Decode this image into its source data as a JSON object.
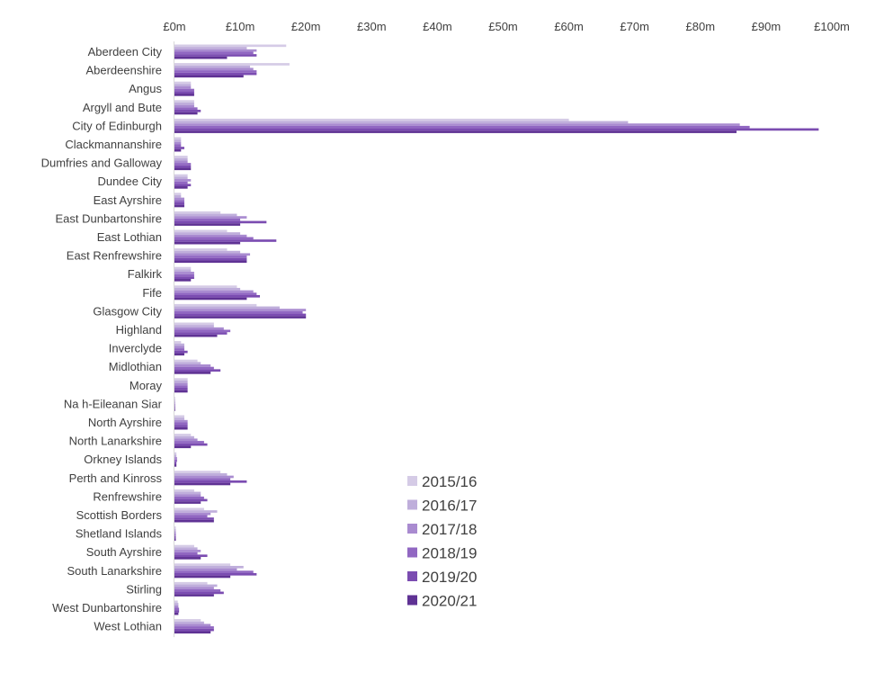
{
  "chart_data": {
    "type": "bar",
    "orientation": "horizontal",
    "title": "",
    "xlabel": "",
    "ylabel": "",
    "xlim": [
      0,
      100
    ],
    "x_ticks": [
      0,
      10,
      20,
      30,
      40,
      50,
      60,
      70,
      80,
      90,
      100
    ],
    "x_tick_labels": [
      "£0m",
      "£10m",
      "£20m",
      "£30m",
      "£40m",
      "£50m",
      "£60m",
      "£70m",
      "£80m",
      "£90m",
      "£100m"
    ],
    "grid": false,
    "legend_position": "bottom-center inside plot",
    "categories": [
      "Aberdeen City",
      "Aberdeenshire",
      "Angus",
      "Argyll and Bute",
      "City of Edinburgh",
      "Clackmannanshire",
      "Dumfries and Galloway",
      "Dundee City",
      "East Ayrshire",
      "East Dunbartonshire",
      "East Lothian",
      "East Renfrewshire",
      "Falkirk",
      "Fife",
      "Glasgow City",
      "Highland",
      "Inverclyde",
      "Midlothian",
      "Moray",
      "Na h-Eileanan Siar",
      "North Ayrshire",
      "North Lanarkshire",
      "Orkney Islands",
      "Perth and Kinross",
      "Renfrewshire",
      "Scottish Borders",
      "Shetland Islands",
      "South Ayrshire",
      "South Lanarkshire",
      "Stirling",
      "West Dunbartonshire",
      "West Lothian"
    ],
    "series": [
      {
        "name": "2015/16",
        "color": "#d5cbe6",
        "values": [
          17,
          17.5,
          2.5,
          3,
          60,
          1,
          2,
          2,
          1,
          7,
          8,
          8,
          2.5,
          9.5,
          12.5,
          6,
          1,
          3.5,
          2,
          0.1,
          1.5,
          2.5,
          0.3,
          7,
          3,
          4.5,
          0.2,
          3,
          8.5,
          5,
          0.5,
          4
        ]
      },
      {
        "name": "2016/17",
        "color": "#bfaedb",
        "values": [
          11,
          11.5,
          2.5,
          3,
          69,
          1,
          2,
          2,
          1,
          9.5,
          10,
          10,
          2.5,
          10,
          16,
          6,
          1.5,
          4,
          2,
          0.1,
          1.5,
          3,
          0.3,
          8,
          4,
          6.5,
          0.2,
          3.5,
          10.5,
          6.5,
          0.6,
          4.5
        ]
      },
      {
        "name": "2017/18",
        "color": "#a98bd0",
        "values": [
          12.5,
          12,
          2.5,
          3,
          86,
          1,
          2,
          2.5,
          1.5,
          11,
          11,
          11.5,
          3,
          12,
          20,
          7.5,
          1.5,
          5.5,
          2,
          0.1,
          2,
          3.5,
          0.4,
          9,
          4,
          5.5,
          0.2,
          4,
          9.5,
          6,
          0.6,
          5.5
        ]
      },
      {
        "name": "2018/19",
        "color": "#9167c2",
        "values": [
          12,
          12.5,
          3,
          3.5,
          87.5,
          1,
          2.5,
          2,
          1.5,
          10,
          12,
          11,
          3,
          12.5,
          19.5,
          8.5,
          1.5,
          6,
          2,
          0.1,
          2,
          4.5,
          0.4,
          8.5,
          4.5,
          5,
          0.2,
          3.5,
          12,
          7,
          0.7,
          6
        ]
      },
      {
        "name": "2019/20",
        "color": "#7b4cb1",
        "values": [
          12.5,
          12.5,
          3,
          4,
          98,
          1.5,
          2.5,
          2.5,
          1.5,
          14,
          15.5,
          11,
          3,
          13,
          20,
          8,
          2,
          7,
          2,
          0.1,
          2,
          5,
          0.3,
          11,
          5,
          6,
          0.2,
          5,
          12.5,
          7.5,
          0.7,
          6
        ]
      },
      {
        "name": "2020/21",
        "color": "#5f3294",
        "values": [
          8,
          10.5,
          3,
          3.5,
          85.5,
          1,
          2.5,
          2,
          1.5,
          10,
          10,
          11,
          2.5,
          11,
          20,
          6.5,
          1.5,
          5.5,
          2,
          0.1,
          2,
          2.5,
          0.3,
          8.5,
          4,
          6,
          0.2,
          4,
          8.5,
          6,
          0.6,
          5.5
        ]
      }
    ]
  }
}
